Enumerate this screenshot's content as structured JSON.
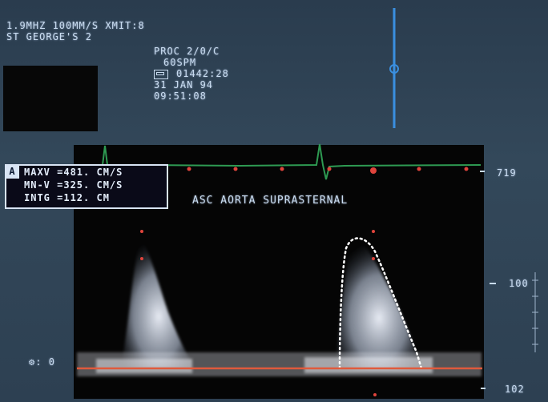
{
  "header": {
    "line1": "1.9MHZ   100MM/S XMIT:8",
    "line2": "ST GEORGE'S 2"
  },
  "info": {
    "proc": "PROC 2/0/C",
    "gain": "60SPM",
    "tape_icon": "tape-counter-icon",
    "counter": "01442:28",
    "date": "31 JAN  94",
    "time": "09:51:08"
  },
  "measurements": {
    "tag": "A",
    "maxv": "MAXV =481. CM/S",
    "mnv": "MN-V =325. CM/S",
    "intg": "INTG =112. CM"
  },
  "label": "ASC AORTA SUPRASTERNAL",
  "scale": {
    "top": "719",
    "mid": "100",
    "bottom": "102",
    "baseline": "0"
  },
  "colors": {
    "ecg": "#2e9a52",
    "baseline": "#e05a3c",
    "cursor": "#3a8fe0",
    "markers": "#e0443c",
    "text": "#c9dcf0"
  }
}
